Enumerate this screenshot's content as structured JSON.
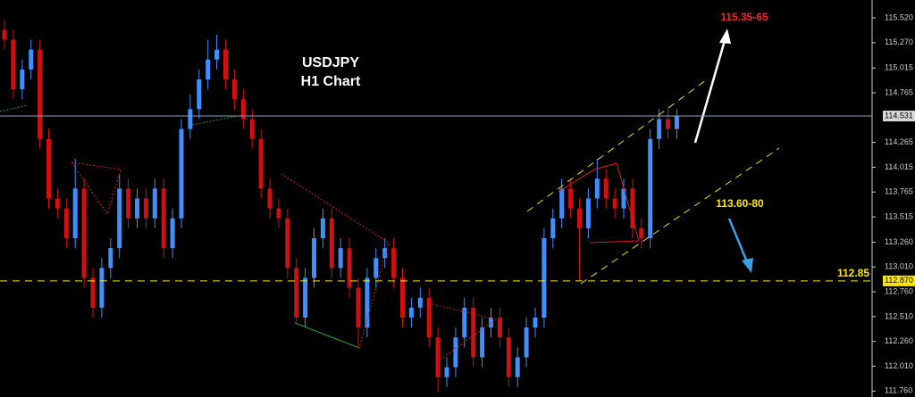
{
  "chart_data": {
    "type": "candlestick",
    "title": "USDJPY",
    "subtitle": "H1 Chart",
    "up_color": "#3f8fff",
    "down_color": "#d01010",
    "open": [
      115.4,
      115.3,
      114.8,
      115.0,
      115.2,
      114.3,
      113.7,
      113.6,
      113.3,
      113.8,
      112.9,
      112.6,
      113.0,
      113.2,
      113.8,
      113.5,
      113.7,
      113.5,
      113.8,
      113.2,
      113.5,
      114.4,
      114.6,
      114.9,
      115.1,
      115.2,
      114.9,
      114.7,
      114.5,
      114.3,
      113.8,
      113.6,
      113.5,
      113.0,
      112.5,
      112.9,
      113.3,
      113.5,
      113.0,
      113.2,
      112.8,
      112.4,
      112.9,
      113.1,
      113.2,
      112.9,
      112.5,
      112.6,
      112.7,
      112.3,
      111.9,
      112.0,
      112.3,
      112.6,
      112.1,
      112.4,
      112.5,
      112.3,
      111.9,
      112.1,
      112.4,
      112.5,
      113.3,
      113.5,
      113.8,
      113.6,
      113.4,
      113.7,
      113.9,
      113.7,
      113.6,
      113.8,
      113.4,
      113.3,
      114.3,
      114.5,
      114.4
    ],
    "high": [
      115.5,
      115.4,
      115.1,
      115.3,
      115.3,
      114.4,
      113.8,
      113.7,
      114.1,
      113.9,
      113.0,
      113.1,
      113.3,
      113.95,
      113.9,
      113.8,
      113.8,
      113.9,
      113.9,
      113.6,
      114.5,
      114.75,
      115.0,
      115.3,
      115.35,
      115.3,
      115.0,
      114.8,
      114.6,
      114.4,
      113.9,
      113.7,
      113.6,
      113.1,
      113.0,
      113.4,
      113.6,
      113.6,
      113.3,
      113.3,
      112.9,
      113.0,
      113.2,
      113.3,
      113.3,
      113.0,
      112.7,
      112.8,
      112.8,
      112.4,
      112.1,
      112.4,
      112.7,
      112.7,
      112.5,
      112.6,
      112.6,
      112.4,
      112.2,
      112.5,
      112.6,
      113.4,
      113.6,
      113.9,
      113.9,
      113.7,
      113.8,
      114.1,
      114.0,
      113.8,
      113.9,
      113.9,
      113.5,
      114.4,
      114.6,
      114.6,
      114.6
    ],
    "low": [
      115.2,
      114.7,
      114.7,
      114.9,
      114.2,
      113.6,
      113.5,
      113.2,
      113.2,
      112.8,
      112.5,
      112.5,
      112.9,
      113.1,
      113.4,
      113.4,
      113.4,
      113.4,
      113.1,
      113.1,
      113.4,
      114.3,
      114.5,
      114.8,
      115.0,
      114.8,
      114.6,
      114.4,
      114.2,
      113.7,
      113.5,
      113.4,
      112.9,
      112.45,
      112.4,
      112.8,
      113.2,
      112.9,
      112.9,
      112.7,
      112.2,
      112.3,
      112.8,
      113.0,
      112.8,
      112.4,
      112.4,
      112.5,
      112.2,
      111.75,
      111.8,
      111.9,
      112.2,
      112.0,
      112.0,
      112.3,
      112.2,
      111.8,
      111.8,
      112.0,
      112.3,
      112.4,
      113.2,
      113.4,
      113.5,
      112.87,
      113.3,
      113.6,
      113.6,
      113.5,
      113.5,
      113.3,
      113.2,
      113.2,
      114.2,
      114.3,
      114.3
    ],
    "close": [
      115.3,
      114.8,
      115.0,
      115.2,
      114.3,
      113.7,
      113.6,
      113.3,
      113.8,
      112.9,
      112.6,
      113.0,
      113.2,
      113.8,
      113.5,
      113.7,
      113.5,
      113.8,
      113.2,
      113.5,
      114.4,
      114.6,
      114.9,
      115.1,
      115.2,
      114.9,
      114.7,
      114.5,
      114.3,
      113.8,
      113.6,
      113.5,
      113.0,
      112.5,
      112.9,
      113.3,
      113.5,
      113.0,
      113.2,
      112.8,
      112.4,
      112.9,
      113.1,
      113.2,
      112.9,
      112.5,
      112.6,
      112.7,
      112.3,
      111.9,
      112.0,
      112.3,
      112.6,
      112.1,
      112.4,
      112.5,
      112.3,
      111.9,
      112.1,
      112.4,
      112.5,
      113.3,
      113.5,
      113.8,
      113.6,
      113.4,
      113.7,
      113.9,
      113.7,
      113.6,
      113.8,
      113.4,
      113.3,
      114.3,
      114.5,
      114.4,
      114.531
    ],
    "ylim": [
      111.7,
      115.7
    ],
    "yticks": [
      {
        "value": 115.52,
        "label": "115.520"
      },
      {
        "value": 115.27,
        "label": "115.270"
      },
      115.015,
      114.765,
      114.265,
      114.015,
      113.765,
      113.515,
      {
        "value": 113.26,
        "label": "113.260"
      },
      {
        "value": 113.01,
        "label": "113.010"
      },
      {
        "value": 112.76,
        "label": "112.760"
      },
      {
        "value": 112.51,
        "label": "112.510"
      },
      {
        "value": 112.26,
        "label": "112.260"
      },
      {
        "value": 112.01,
        "label": "112.010"
      },
      {
        "value": 111.76,
        "label": "111.760"
      }
    ],
    "price_line": {
      "value": 114.531,
      "label": "114.531",
      "color": "#8aa0c0"
    },
    "support_line": {
      "value": 112.87,
      "label": "112.870",
      "color": "#ffe800"
    },
    "annotations": {
      "target_high": "115.35-65",
      "target_mid": "113.60-80",
      "support": "112.85"
    }
  }
}
